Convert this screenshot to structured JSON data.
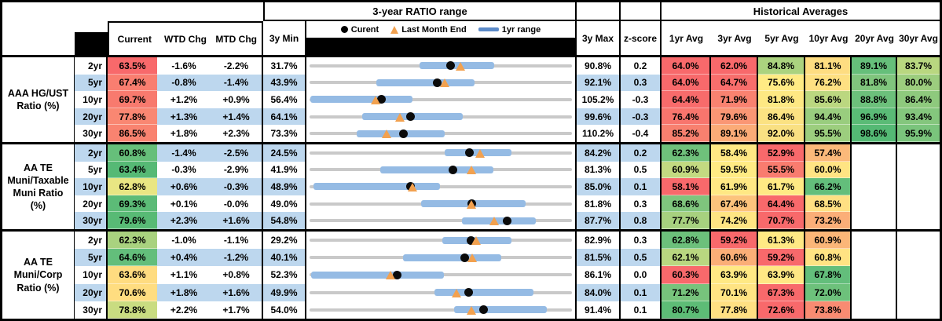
{
  "header": {
    "range_title": "3-year RATIO range",
    "hist_title": "Historical Averages",
    "col_current": "Current",
    "col_wtd": "WTD Chg",
    "col_mtd": "MTD Chg",
    "col_3ymin": "3y Min",
    "col_3ymax": "3y Max",
    "col_zscore": "z-score",
    "avg_cols": [
      "1yr Avg",
      "3yr Avg",
      "5yr Avg",
      "10yr Avg",
      "20yr Avg",
      "30yr Avg"
    ],
    "legend_current": "Curent",
    "legend_lme": "Last Month End",
    "legend_range": "1yr range"
  },
  "colors": {
    "stripe": "#BDD7EE",
    "range_bar": "#95BBE4",
    "range_track": "#C9C9C9",
    "current_dot": "#0B0B0B",
    "lme_triangle": "#F2A14F",
    "scale_red": "#F8696B",
    "scale_yellow": "#FFEB84",
    "scale_green": "#63BE7B"
  },
  "chart_data": {
    "type": "table",
    "note": "Each row has an embedded range chart scaled from 3y Min to 3y Max; dot = current, triangle = last month end, blue bar = 1yr range (values in %).",
    "groups": [
      {
        "label": "AAA HG/UST\nRatio (%)",
        "rows": [
          {
            "tenor": "2yr",
            "stripe": false,
            "current": {
              "v": "63.5%",
              "bg": "#F8696B"
            },
            "wtd": "-1.6%",
            "mtd": "-2.2%",
            "min3y": "31.7%",
            "max3y": "90.8%",
            "z": "0.2",
            "range": {
              "lo": 31.7,
              "hi": 90.8,
              "cur": 63.5,
              "lme": 65.7,
              "bar": [
                56.5,
                73.2
              ]
            },
            "avgs": [
              {
                "v": "64.0%",
                "bg": "#F8696B"
              },
              {
                "v": "62.0%",
                "bg": "#F8696B"
              },
              {
                "v": "84.8%",
                "bg": "#ABD37F"
              },
              {
                "v": "81.1%",
                "bg": "#FEDD81"
              },
              {
                "v": "89.1%",
                "bg": "#66BF7A"
              },
              {
                "v": "83.7%",
                "bg": "#B9D780"
              }
            ]
          },
          {
            "tenor": "5yr",
            "stripe": true,
            "current": {
              "v": "67.4%",
              "bg": "#F97E70"
            },
            "wtd": "-0.8%",
            "mtd": "-1.4%",
            "min3y": "43.9%",
            "max3y": "92.1%",
            "z": "0.3",
            "range": {
              "lo": 43.9,
              "hi": 92.1,
              "cur": 67.4,
              "lme": 68.8,
              "bar": [
                56.1,
                74.2
              ]
            },
            "avgs": [
              {
                "v": "64.0%",
                "bg": "#F8696B"
              },
              {
                "v": "64.7%",
                "bg": "#F86E6C"
              },
              {
                "v": "75.6%",
                "bg": "#FFEB84"
              },
              {
                "v": "76.2%",
                "bg": "#FEE082"
              },
              {
                "v": "81.8%",
                "bg": "#80C57D"
              },
              {
                "v": "80.0%",
                "bg": "#9CCD7E"
              }
            ]
          },
          {
            "tenor": "10yr",
            "stripe": false,
            "current": {
              "v": "69.7%",
              "bg": "#F87A6E"
            },
            "wtd": "+1.2%",
            "mtd": "+0.9%",
            "min3y": "56.4%",
            "max3y": "105.2%",
            "z": "-0.3",
            "range": {
              "lo": 56.4,
              "hi": 105.2,
              "cur": 69.7,
              "lme": 68.8,
              "bar": [
                56.6,
                75.5
              ]
            },
            "avgs": [
              {
                "v": "64.4%",
                "bg": "#F86B6B"
              },
              {
                "v": "71.9%",
                "bg": "#F98270"
              },
              {
                "v": "81.8%",
                "bg": "#FEE883"
              },
              {
                "v": "85.6%",
                "bg": "#BBD780"
              },
              {
                "v": "88.8%",
                "bg": "#6CC07B"
              },
              {
                "v": "86.4%",
                "bg": "#8EC97D"
              }
            ]
          },
          {
            "tenor": "20yr",
            "stripe": true,
            "current": {
              "v": "77.8%",
              "bg": "#F98772"
            },
            "wtd": "+1.3%",
            "mtd": "+1.4%",
            "min3y": "64.1%",
            "max3y": "99.6%",
            "z": "-0.3",
            "range": {
              "lo": 64.1,
              "hi": 99.6,
              "cur": 77.8,
              "lme": 76.4,
              "bar": [
                71.2,
                84.8
              ]
            },
            "avgs": [
              {
                "v": "76.4%",
                "bg": "#F8756D"
              },
              {
                "v": "79.6%",
                "bg": "#FA9674"
              },
              {
                "v": "86.4%",
                "bg": "#FBE282"
              },
              {
                "v": "94.4%",
                "bg": "#99CD7E"
              },
              {
                "v": "96.9%",
                "bg": "#5ABB76"
              },
              {
                "v": "93.4%",
                "bg": "#84C67D"
              }
            ]
          },
          {
            "tenor": "30yr",
            "stripe": false,
            "current": {
              "v": "86.5%",
              "bg": "#F98370"
            },
            "wtd": "+1.8%",
            "mtd": "+2.3%",
            "min3y": "73.3%",
            "max3y": "110.2%",
            "z": "-0.4",
            "range": {
              "lo": 73.3,
              "hi": 110.2,
              "cur": 86.5,
              "lme": 84.2,
              "bar": [
                79.9,
                92.3
              ]
            },
            "avgs": [
              {
                "v": "85.2%",
                "bg": "#F8806F"
              },
              {
                "v": "89.1%",
                "bg": "#FBAB77"
              },
              {
                "v": "92.0%",
                "bg": "#F9E082"
              },
              {
                "v": "95.5%",
                "bg": "#9CCE7E"
              },
              {
                "v": "98.6%",
                "bg": "#54B974"
              },
              {
                "v": "95.9%",
                "bg": "#7AC47C"
              }
            ]
          }
        ]
      },
      {
        "label": "AA TE\nMuni/Taxable\nMuni Ratio\n(%)",
        "rows": [
          {
            "tenor": "2yr",
            "stripe": true,
            "current": {
              "v": "60.8%",
              "bg": "#66BF7A"
            },
            "wtd": "-1.4%",
            "mtd": "-2.5%",
            "min3y": "24.5%",
            "max3y": "84.2%",
            "z": "0.2",
            "range": {
              "lo": 24.5,
              "hi": 84.2,
              "cur": 60.8,
              "lme": 63.3,
              "bar": [
                55.2,
                70.4
              ]
            },
            "avgs": [
              {
                "v": "62.3%",
                "bg": "#6FC17B"
              },
              {
                "v": "58.4%",
                "bg": "#FFE884"
              },
              {
                "v": "52.9%",
                "bg": "#F8696B"
              },
              {
                "v": "57.4%",
                "bg": "#FBB97A"
              },
              {
                "v": "",
                "bg": ""
              },
              {
                "v": "",
                "bg": ""
              }
            ]
          },
          {
            "tenor": "5yr",
            "stripe": false,
            "current": {
              "v": "63.4%",
              "bg": "#56B975"
            },
            "wtd": "-0.3%",
            "mtd": "-2.9%",
            "min3y": "41.9%",
            "max3y": "81.3%",
            "z": "0.5",
            "range": {
              "lo": 41.9,
              "hi": 81.3,
              "cur": 63.4,
              "lme": 66.3,
              "bar": [
                52.5,
                69.5
              ]
            },
            "avgs": [
              {
                "v": "60.9%",
                "bg": "#C3DA81"
              },
              {
                "v": "59.5%",
                "bg": "#FFEB84"
              },
              {
                "v": "55.5%",
                "bg": "#F97C6F"
              },
              {
                "v": "60.0%",
                "bg": "#FFE483"
              },
              {
                "v": "",
                "bg": ""
              },
              {
                "v": "",
                "bg": ""
              }
            ]
          },
          {
            "tenor": "10yr",
            "stripe": true,
            "current": {
              "v": "62.8%",
              "bg": "#E9E683"
            },
            "wtd": "+0.6%",
            "mtd": "-0.3%",
            "min3y": "48.9%",
            "max3y": "85.0%",
            "z": "0.1",
            "range": {
              "lo": 48.9,
              "hi": 85.0,
              "cur": 62.8,
              "lme": 63.1,
              "bar": [
                49.4,
                66.8
              ]
            },
            "avgs": [
              {
                "v": "58.1%",
                "bg": "#F8696B"
              },
              {
                "v": "61.9%",
                "bg": "#FFE884"
              },
              {
                "v": "61.7%",
                "bg": "#FFEA84"
              },
              {
                "v": "66.2%",
                "bg": "#63BE7B"
              },
              {
                "v": "",
                "bg": ""
              },
              {
                "v": "",
                "bg": ""
              }
            ]
          },
          {
            "tenor": "20yr",
            "stripe": false,
            "current": {
              "v": "69.3%",
              "bg": "#5CBB77"
            },
            "wtd": "+0.1%",
            "mtd": "-0.0%",
            "min3y": "49.0%",
            "max3y": "81.8%",
            "z": "0.3",
            "range": {
              "lo": 49.0,
              "hi": 81.8,
              "cur": 69.3,
              "lme": 69.3,
              "bar": [
                62.9,
                76.0
              ]
            },
            "avgs": [
              {
                "v": "68.6%",
                "bg": "#7FC57D"
              },
              {
                "v": "67.4%",
                "bg": "#FCC37C"
              },
              {
                "v": "64.4%",
                "bg": "#F8696B"
              },
              {
                "v": "68.5%",
                "bg": "#FFE083"
              },
              {
                "v": "",
                "bg": ""
              },
              {
                "v": "",
                "bg": ""
              }
            ]
          },
          {
            "tenor": "30yr",
            "stripe": true,
            "current": {
              "v": "79.6%",
              "bg": "#58BA75"
            },
            "wtd": "+2.3%",
            "mtd": "+1.6%",
            "min3y": "54.8%",
            "max3y": "87.7%",
            "z": "0.8",
            "range": {
              "lo": 54.8,
              "hi": 87.7,
              "cur": 79.6,
              "lme": 78.0,
              "bar": [
                73.9,
                83.2
              ]
            },
            "avgs": [
              {
                "v": "77.7%",
                "bg": "#A7D17F"
              },
              {
                "v": "74.2%",
                "bg": "#FFE583"
              },
              {
                "v": "70.7%",
                "bg": "#F8696B"
              },
              {
                "v": "73.2%",
                "bg": "#FBAE78"
              },
              {
                "v": "",
                "bg": ""
              },
              {
                "v": "",
                "bg": ""
              }
            ]
          }
        ]
      },
      {
        "label": "AA TE\nMuni/Corp\nRatio (%)",
        "rows": [
          {
            "tenor": "2yr",
            "stripe": false,
            "current": {
              "v": "62.3%",
              "bg": "#A9D27F"
            },
            "wtd": "-1.0%",
            "mtd": "-1.1%",
            "min3y": "29.2%",
            "max3y": "82.9%",
            "z": "0.3",
            "range": {
              "lo": 29.2,
              "hi": 82.9,
              "cur": 62.3,
              "lme": 63.4,
              "bar": [
                56.3,
                70.5
              ]
            },
            "avgs": [
              {
                "v": "62.8%",
                "bg": "#6CC07B"
              },
              {
                "v": "59.2%",
                "bg": "#F8696B"
              },
              {
                "v": "61.3%",
                "bg": "#FFE984"
              },
              {
                "v": "60.9%",
                "bg": "#FBB678"
              },
              {
                "v": "",
                "bg": ""
              },
              {
                "v": "",
                "bg": ""
              }
            ]
          },
          {
            "tenor": "5yr",
            "stripe": true,
            "current": {
              "v": "64.6%",
              "bg": "#63BE7B"
            },
            "wtd": "+0.4%",
            "mtd": "-1.2%",
            "min3y": "40.1%",
            "max3y": "81.5%",
            "z": "0.5",
            "range": {
              "lo": 40.1,
              "hi": 81.5,
              "cur": 64.6,
              "lme": 65.8,
              "bar": [
                54.8,
                70.3
              ]
            },
            "avgs": [
              {
                "v": "62.1%",
                "bg": "#B9D780"
              },
              {
                "v": "60.6%",
                "bg": "#FBAE77"
              },
              {
                "v": "59.2%",
                "bg": "#F8696B"
              },
              {
                "v": "60.8%",
                "bg": "#FFE383"
              },
              {
                "v": "",
                "bg": ""
              },
              {
                "v": "",
                "bg": ""
              }
            ]
          },
          {
            "tenor": "10yr",
            "stripe": false,
            "current": {
              "v": "63.6%",
              "bg": "#FFDC80"
            },
            "wtd": "+1.1%",
            "mtd": "+0.8%",
            "min3y": "52.3%",
            "max3y": "86.1%",
            "z": "0.0",
            "range": {
              "lo": 52.3,
              "hi": 86.1,
              "cur": 63.6,
              "lme": 62.8,
              "bar": [
                52.5,
                69.6
              ]
            },
            "avgs": [
              {
                "v": "60.3%",
                "bg": "#F8696B"
              },
              {
                "v": "63.9%",
                "bg": "#FFE984"
              },
              {
                "v": "63.9%",
                "bg": "#FFE884"
              },
              {
                "v": "67.8%",
                "bg": "#63BE7B"
              },
              {
                "v": "",
                "bg": ""
              },
              {
                "v": "",
                "bg": ""
              }
            ]
          },
          {
            "tenor": "20yr",
            "stripe": true,
            "current": {
              "v": "70.6%",
              "bg": "#FFDD80"
            },
            "wtd": "+1.8%",
            "mtd": "+1.6%",
            "min3y": "49.9%",
            "max3y": "84.0%",
            "z": "0.1",
            "range": {
              "lo": 49.9,
              "hi": 84.0,
              "cur": 70.6,
              "lme": 69.0,
              "bar": [
                66.1,
                79.0
              ]
            },
            "avgs": [
              {
                "v": "71.2%",
                "bg": "#77C37C"
              },
              {
                "v": "70.1%",
                "bg": "#FFE483"
              },
              {
                "v": "67.3%",
                "bg": "#F8696B"
              },
              {
                "v": "72.0%",
                "bg": "#6DC17B"
              },
              {
                "v": "",
                "bg": ""
              },
              {
                "v": "",
                "bg": ""
              }
            ]
          },
          {
            "tenor": "30yr",
            "stripe": false,
            "current": {
              "v": "78.8%",
              "bg": "#C9DC81"
            },
            "wtd": "+2.2%",
            "mtd": "+1.7%",
            "min3y": "54.0%",
            "max3y": "91.4%",
            "z": "0.1",
            "range": {
              "lo": 54.0,
              "hi": 91.4,
              "cur": 78.8,
              "lme": 77.1,
              "bar": [
                74.6,
                87.8
              ]
            },
            "avgs": [
              {
                "v": "80.7%",
                "bg": "#5DBC76"
              },
              {
                "v": "77.8%",
                "bg": "#FFE083"
              },
              {
                "v": "72.6%",
                "bg": "#F8696B"
              },
              {
                "v": "73.8%",
                "bg": "#F98B72"
              },
              {
                "v": "",
                "bg": ""
              },
              {
                "v": "",
                "bg": ""
              }
            ]
          }
        ]
      }
    ]
  }
}
